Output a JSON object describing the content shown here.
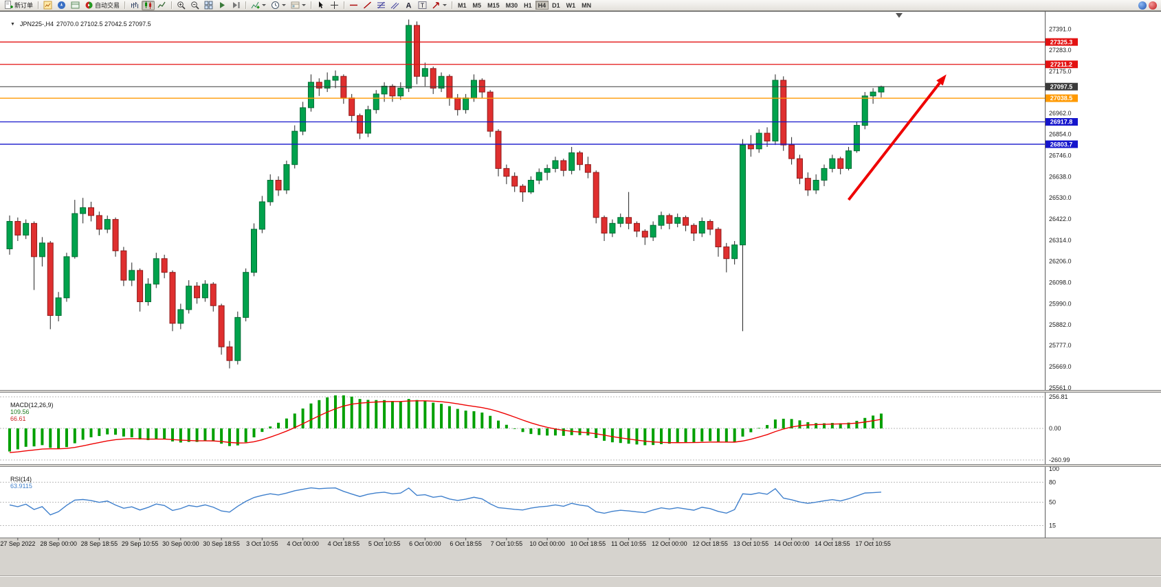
{
  "toolbar": {
    "new_order": "新订单",
    "autotrading": "自动交易",
    "timeframes": [
      "M1",
      "M5",
      "M15",
      "M30",
      "H1",
      "H4",
      "D1",
      "W1",
      "MN"
    ],
    "active_timeframe": "H4"
  },
  "chart": {
    "title": "JPN225-,H4",
    "ohlc": "27070.0 27102.5 27042.5 27097.5"
  },
  "indicators": {
    "macd": {
      "label": "MACD(12,26,9)",
      "value_main": "109.56",
      "value_signal": "66.61",
      "scale_labels": [
        "256.81",
        "0.00",
        "-260.99"
      ]
    },
    "rsi": {
      "label": "RSI(14)",
      "value": "63.9115",
      "scale_labels": [
        "100",
        "80",
        "50",
        "15"
      ],
      "levels": [
        80,
        50,
        15
      ]
    }
  },
  "chart_data": {
    "type": "candlestick",
    "symbol": "JPN225-",
    "timeframe": "H4",
    "current_bar": {
      "open": 27070.0,
      "high": 27102.5,
      "low": 27042.5,
      "close": 27097.5
    },
    "price_range": [
      25550,
      27480
    ],
    "y_axis_labels": [
      "27391.0",
      "27283.0",
      "27175.0",
      "26962.0",
      "26854.0",
      "26746.0",
      "26638.0",
      "26530.0",
      "26422.0",
      "26314.0",
      "26206.0",
      "26098.0",
      "25990.0",
      "25882.0",
      "25777.0",
      "25669.0",
      "25561.0"
    ],
    "horizontal_lines": [
      {
        "price": 27325.3,
        "color": "#e31212",
        "label": "27325.3",
        "role": "resistance"
      },
      {
        "price": 27211.2,
        "color": "#e31212",
        "label": "27211.2",
        "role": "resistance"
      },
      {
        "price": 27097.5,
        "color": "#3a3a3a",
        "label": "27097.5",
        "role": "current-price"
      },
      {
        "price": 27038.5,
        "color": "#ff9900",
        "label": "27038.5",
        "role": "level"
      },
      {
        "price": 26917.8,
        "color": "#1515cc",
        "label": "26917.8",
        "role": "support"
      },
      {
        "price": 26803.7,
        "color": "#1515cc",
        "label": "26803.7",
        "role": "support"
      }
    ],
    "trend_arrow": {
      "from_index": 103,
      "from_price": 26520,
      "to_index": 115,
      "to_price": 27160,
      "color": "#ee0000"
    },
    "colors": {
      "bull": "#00a24c",
      "bear": "#df2f2f",
      "wick": "#222222",
      "macd_hist": "#00a000",
      "macd_signal": "#ee0000",
      "rsi_line": "#3e7fcc"
    },
    "x_label_start_index": 1,
    "x_label_step": 5,
    "x_labels": [
      "27 Sep 2022",
      "28 Sep 00:00",
      "28 Sep 18:55",
      "29 Sep 10:55",
      "30 Sep 00:00",
      "30 Sep 18:55",
      "3 Oct 10:55",
      "4 Oct 00:00",
      "4 Oct 18:55",
      "5 Oct 10:55",
      "6 Oct 00:00",
      "6 Oct 18:55",
      "7 Oct 10:55",
      "10 Oct 00:00",
      "10 Oct 18:55",
      "11 Oct 10:55",
      "12 Oct 00:00",
      "12 Oct 18:55",
      "13 Oct 10:55",
      "14 Oct 00:00",
      "14 Oct 18:55",
      "17 Oct 10:55"
    ],
    "candles_ohlc": [
      [
        26270,
        26440,
        26240,
        26410
      ],
      [
        26410,
        26430,
        26310,
        26340
      ],
      [
        26340,
        26420,
        26320,
        26400
      ],
      [
        26400,
        26410,
        26060,
        26230
      ],
      [
        26230,
        26330,
        26180,
        26300
      ],
      [
        26300,
        26310,
        25860,
        25930
      ],
      [
        25930,
        26050,
        25900,
        26020
      ],
      [
        26020,
        26250,
        26000,
        26230
      ],
      [
        26230,
        26520,
        26220,
        26450
      ],
      [
        26450,
        26530,
        26400,
        26480
      ],
      [
        26480,
        26510,
        26410,
        26440
      ],
      [
        26440,
        26460,
        26340,
        26370
      ],
      [
        26370,
        26440,
        26350,
        26420
      ],
      [
        26420,
        26430,
        26230,
        26260
      ],
      [
        26260,
        26280,
        26080,
        26110
      ],
      [
        26110,
        26200,
        26080,
        26160
      ],
      [
        26160,
        26170,
        25950,
        26000
      ],
      [
        26000,
        26120,
        25980,
        26090
      ],
      [
        26090,
        26250,
        26070,
        26220
      ],
      [
        26220,
        26240,
        26120,
        26150
      ],
      [
        26150,
        26160,
        25850,
        25890
      ],
      [
        25890,
        25990,
        25860,
        25960
      ],
      [
        25960,
        26110,
        25940,
        26080
      ],
      [
        26080,
        26100,
        25990,
        26020
      ],
      [
        26020,
        26110,
        26000,
        26090
      ],
      [
        26090,
        26100,
        25950,
        25980
      ],
      [
        25980,
        25990,
        25730,
        25770
      ],
      [
        25770,
        25800,
        25660,
        25700
      ],
      [
        25700,
        25950,
        25680,
        25920
      ],
      [
        25920,
        26170,
        25900,
        26150
      ],
      [
        26150,
        26400,
        26130,
        26370
      ],
      [
        26370,
        26540,
        26350,
        26510
      ],
      [
        26510,
        26650,
        26490,
        26620
      ],
      [
        26620,
        26640,
        26540,
        26570
      ],
      [
        26570,
        26720,
        26550,
        26700
      ],
      [
        26700,
        26900,
        26680,
        26870
      ],
      [
        26870,
        27020,
        26850,
        26990
      ],
      [
        26990,
        27160,
        26970,
        27120
      ],
      [
        27120,
        27140,
        27050,
        27090
      ],
      [
        27090,
        27170,
        27070,
        27130
      ],
      [
        27130,
        27180,
        27090,
        27150
      ],
      [
        27150,
        27160,
        27010,
        27040
      ],
      [
        27040,
        27060,
        26920,
        26950
      ],
      [
        26950,
        26960,
        26830,
        26860
      ],
      [
        26860,
        27000,
        26840,
        26980
      ],
      [
        26980,
        27080,
        26960,
        27060
      ],
      [
        27060,
        27120,
        27020,
        27100
      ],
      [
        27100,
        27110,
        27020,
        27050
      ],
      [
        27050,
        27120,
        27030,
        27090
      ],
      [
        27090,
        27440,
        27070,
        27410
      ],
      [
        27410,
        27430,
        27110,
        27150
      ],
      [
        27150,
        27220,
        27100,
        27190
      ],
      [
        27190,
        27200,
        27060,
        27090
      ],
      [
        27090,
        27170,
        27070,
        27150
      ],
      [
        27150,
        27160,
        27000,
        27040
      ],
      [
        27040,
        27060,
        26950,
        26980
      ],
      [
        26980,
        27060,
        26960,
        27040
      ],
      [
        27040,
        27160,
        27020,
        27130
      ],
      [
        27130,
        27140,
        27040,
        27070
      ],
      [
        27070,
        27080,
        26840,
        26870
      ],
      [
        26870,
        26880,
        26640,
        26680
      ],
      [
        26680,
        26700,
        26600,
        26640
      ],
      [
        26640,
        26660,
        26560,
        26590
      ],
      [
        26590,
        26600,
        26510,
        26560
      ],
      [
        26560,
        26640,
        26550,
        26620
      ],
      [
        26620,
        26680,
        26600,
        26660
      ],
      [
        26660,
        26700,
        26620,
        26680
      ],
      [
        26680,
        26740,
        26660,
        26720
      ],
      [
        26720,
        26730,
        26640,
        26670
      ],
      [
        26670,
        26790,
        26650,
        26760
      ],
      [
        26760,
        26770,
        26670,
        26700
      ],
      [
        26700,
        26740,
        26630,
        26660
      ],
      [
        26660,
        26670,
        26400,
        26430
      ],
      [
        26430,
        26440,
        26310,
        26350
      ],
      [
        26350,
        26420,
        26330,
        26400
      ],
      [
        26400,
        26450,
        26380,
        26430
      ],
      [
        26430,
        26560,
        26370,
        26400
      ],
      [
        26400,
        26410,
        26330,
        26360
      ],
      [
        26360,
        26370,
        26290,
        26330
      ],
      [
        26330,
        26410,
        26310,
        26390
      ],
      [
        26390,
        26460,
        26370,
        26440
      ],
      [
        26440,
        26450,
        26370,
        26400
      ],
      [
        26400,
        26450,
        26380,
        26430
      ],
      [
        26430,
        26440,
        26360,
        26390
      ],
      [
        26390,
        26400,
        26310,
        26350
      ],
      [
        26350,
        26430,
        26330,
        26410
      ],
      [
        26410,
        26420,
        26340,
        26370
      ],
      [
        26370,
        26380,
        26230,
        26280
      ],
      [
        26280,
        26300,
        26150,
        26220
      ],
      [
        26220,
        26310,
        26190,
        26290
      ],
      [
        26290,
        26830,
        25850,
        26800
      ],
      [
        26800,
        26850,
        26740,
        26780
      ],
      [
        26780,
        26880,
        26760,
        26860
      ],
      [
        26860,
        26890,
        26790,
        26820
      ],
      [
        26820,
        27160,
        26800,
        27130
      ],
      [
        27130,
        27150,
        26770,
        26800
      ],
      [
        26800,
        26840,
        26700,
        26730
      ],
      [
        26730,
        26750,
        26600,
        26630
      ],
      [
        26630,
        26660,
        26540,
        26570
      ],
      [
        26570,
        26650,
        26550,
        26620
      ],
      [
        26620,
        26700,
        26590,
        26680
      ],
      [
        26680,
        26750,
        26660,
        26730
      ],
      [
        26730,
        26740,
        26650,
        26680
      ],
      [
        26680,
        26790,
        26670,
        26770
      ],
      [
        26770,
        26920,
        26760,
        26900
      ],
      [
        26900,
        27070,
        26880,
        27050
      ],
      [
        27050,
        27090,
        27010,
        27070
      ],
      [
        27070,
        27102.5,
        27042.5,
        27097.5
      ]
    ]
  }
}
